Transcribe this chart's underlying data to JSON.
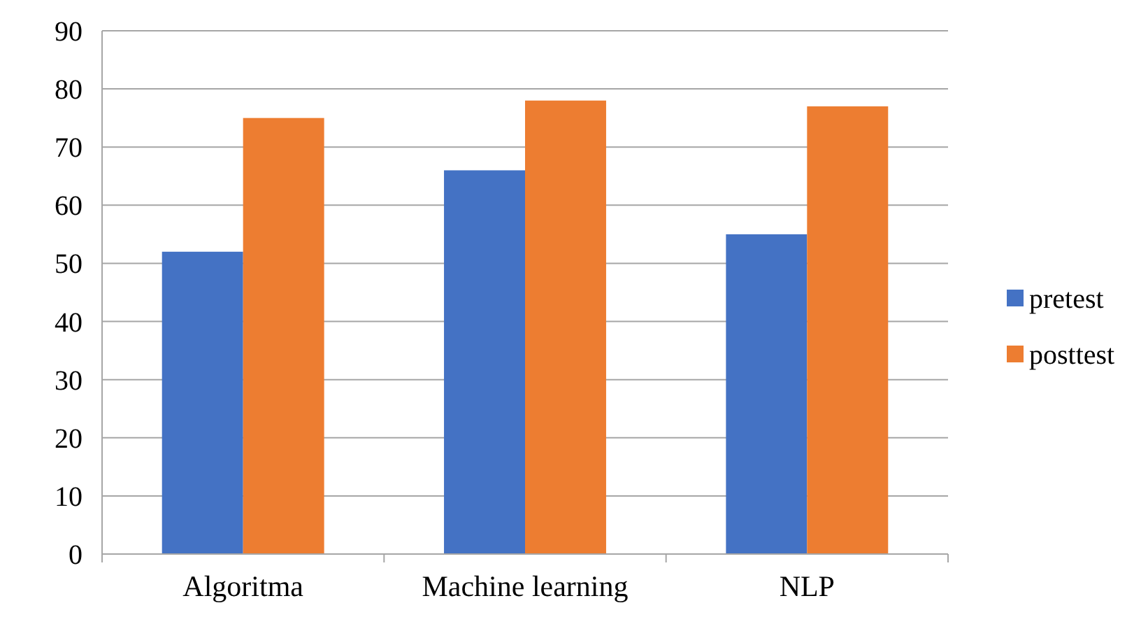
{
  "chart_data": {
    "type": "bar",
    "categories": [
      "Algoritma",
      "Machine learning",
      "NLP"
    ],
    "series": [
      {
        "name": "pretest",
        "color": "#4472c4",
        "values": [
          52,
          66,
          55
        ]
      },
      {
        "name": "posttest",
        "color": "#ed7d31",
        "values": [
          75,
          78,
          77
        ]
      }
    ],
    "ylim": [
      0,
      90
    ],
    "yticks": [
      0,
      10,
      20,
      30,
      40,
      50,
      60,
      70,
      80,
      90
    ],
    "grid": "y",
    "legend": "right"
  }
}
